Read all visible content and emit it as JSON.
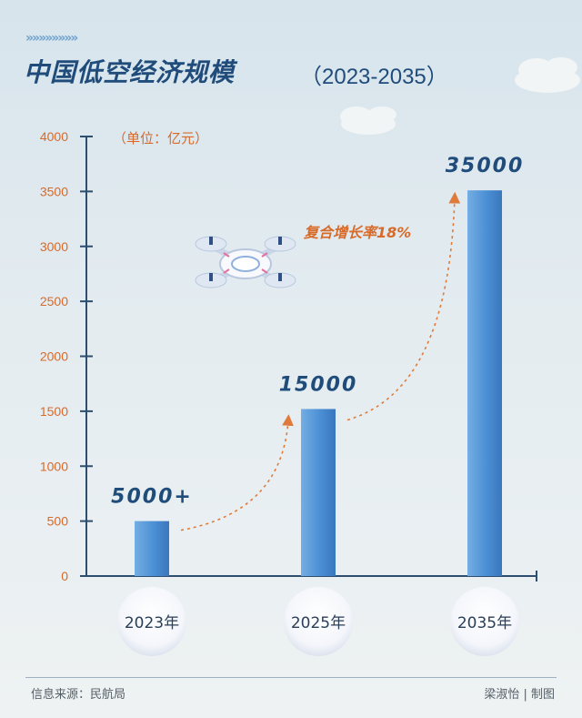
{
  "header": {
    "decoration": "»»»»»»»»",
    "title": "中国低空经济规模",
    "subtitle": "（2023-2035）"
  },
  "unit_label": "（单位：亿元）",
  "annotation": "复合增长率18%",
  "footer": {
    "source": "信息来源：民航局",
    "credit": "梁淑怡 | 制图"
  },
  "colors": {
    "bar": "#4b8fd4",
    "axis": "#2d4e6e",
    "tick_label": "#d86a2a",
    "value_label": "#1f4c7a",
    "arrow": "#e07a3a"
  },
  "chart_data": {
    "type": "bar",
    "categories": [
      "2023年",
      "2025年",
      "2035年"
    ],
    "values": [
      500,
      1520,
      3510
    ],
    "value_labels": [
      "5000+",
      "15000",
      "35000"
    ],
    "y_ticks": [
      0,
      500,
      1000,
      1500,
      2000,
      2500,
      3000,
      3500,
      4000
    ],
    "ylim": [
      0,
      4000
    ],
    "grid": false,
    "legend": "none"
  }
}
